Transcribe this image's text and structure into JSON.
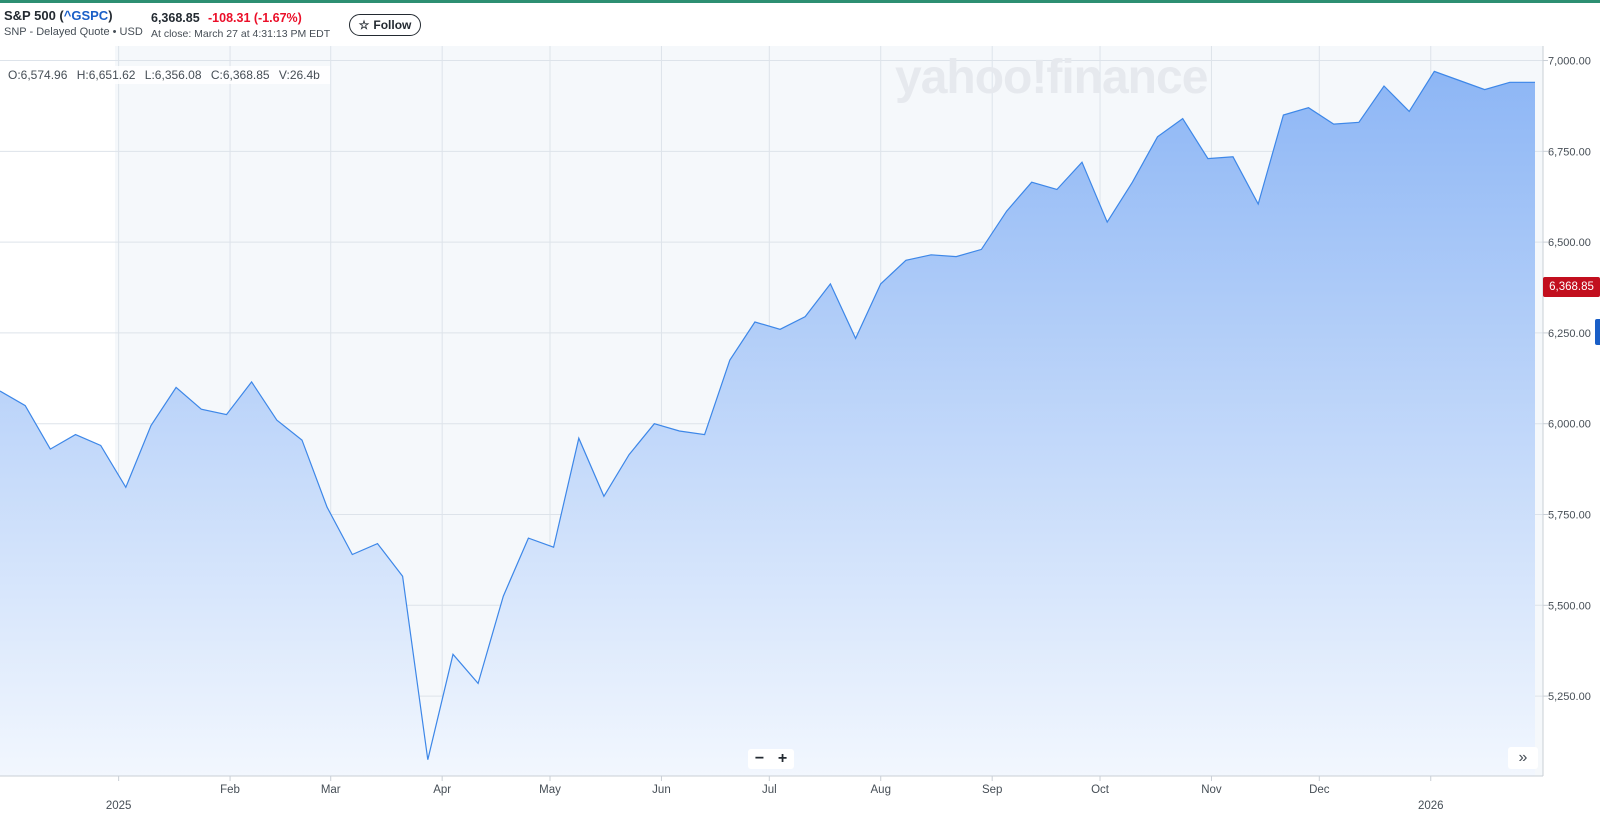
{
  "header": {
    "symbol_name": "S&P 500 (",
    "ticker": "^GSPC",
    "symbol_close": ")",
    "subtitle": "SNP - Delayed Quote • USD",
    "price": "6,368.85",
    "change": "-108.31",
    "change_pct": "(-1.67%)",
    "close_time": "At close: March 27 at 4:31:13 PM EDT",
    "follow_label": "Follow",
    "follow_icon": "star-outline-icon"
  },
  "ohlc": {
    "open": "O:6,574.96",
    "high": "H:6,651.62",
    "low": "L:6,356.08",
    "close": "C:6,368.85",
    "volume": "V:26.4b"
  },
  "watermark": "yahoo!finance",
  "controls": {
    "zoom_out": "−",
    "zoom_in": "+",
    "scroll_end": "»"
  },
  "last_price_tag": "6,368.85",
  "colors": {
    "line": "#3d87e8",
    "fill_top": "#8db6f5",
    "fill_bottom": "#f2f7fe",
    "down": "#eb0f29",
    "accent": "#1a5fc7",
    "topbar": "#2d8f72"
  },
  "chart_data": {
    "type": "area",
    "title": "",
    "xlabel": "",
    "ylabel": "",
    "ylim": [
      5030,
      7040
    ],
    "y_ticks": [
      "7,000.00",
      "6,750.00",
      "6,500.00",
      "6,250.00",
      "6,000.00",
      "5,750.00",
      "5,500.00",
      "5,250.00"
    ],
    "y_tick_values": [
      7000,
      6750,
      6500,
      6250,
      6000,
      5750,
      5500,
      5250
    ],
    "x_ticks": [
      {
        "label": "",
        "year": "2025",
        "x": "2025-01-01"
      },
      {
        "label": "Feb",
        "year": "",
        "x": "2025-02-01"
      },
      {
        "label": "Mar",
        "year": "",
        "x": "2025-03-01"
      },
      {
        "label": "Apr",
        "year": "",
        "x": "2025-04-01"
      },
      {
        "label": "May",
        "year": "",
        "x": "2025-05-01"
      },
      {
        "label": "Jun",
        "year": "",
        "x": "2025-06-01"
      },
      {
        "label": "Jul",
        "year": "",
        "x": "2025-07-01"
      },
      {
        "label": "Aug",
        "year": "",
        "x": "2025-08-01"
      },
      {
        "label": "Sep",
        "year": "",
        "x": "2025-09-01"
      },
      {
        "label": "Oct",
        "year": "",
        "x": "2025-10-01"
      },
      {
        "label": "Nov",
        "year": "",
        "x": "2025-11-01"
      },
      {
        "label": "Dec",
        "year": "",
        "x": "2025-12-01"
      },
      {
        "label": "",
        "year": "2026",
        "x": "2026-01-01"
      }
    ],
    "series": [
      {
        "x": [
          "2024-11-29",
          "2024-12-06",
          "2024-12-13",
          "2024-12-20",
          "2024-12-27",
          "2025-01-03",
          "2025-01-10",
          "2025-01-17",
          "2025-01-24",
          "2025-01-31",
          "2025-02-07",
          "2025-02-14",
          "2025-02-21",
          "2025-02-28",
          "2025-03-07",
          "2025-03-14",
          "2025-03-21",
          "2025-03-28",
          "2025-04-04",
          "2025-04-11",
          "2025-04-18",
          "2025-04-25",
          "2025-05-02",
          "2025-05-09",
          "2025-05-16",
          "2025-05-23",
          "2025-05-30",
          "2025-06-06",
          "2025-06-13",
          "2025-06-20",
          "2025-06-27",
          "2025-07-04",
          "2025-07-11",
          "2025-07-18",
          "2025-07-25",
          "2025-08-01",
          "2025-08-08",
          "2025-08-15",
          "2025-08-22",
          "2025-08-29",
          "2025-09-05",
          "2025-09-12",
          "2025-09-19",
          "2025-09-26",
          "2025-10-03",
          "2025-10-10",
          "2025-10-17",
          "2025-10-24",
          "2025-10-31",
          "2025-11-07",
          "2025-11-14",
          "2025-11-21",
          "2025-11-28",
          "2025-12-05",
          "2025-12-12",
          "2025-12-19",
          "2025-12-26",
          "2026-01-02",
          "2026-01-09",
          "2026-01-16",
          "2026-01-23",
          "2026-01-30"
        ],
        "values": [
          6090,
          6050,
          5930,
          5970,
          5940,
          5825,
          5995,
          6100,
          6040,
          6025,
          6115,
          6010,
          5955,
          5770,
          5640,
          5670,
          5580,
          5075,
          5365,
          5285,
          5525,
          5685,
          5660,
          5960,
          5800,
          5915,
          6000,
          5980,
          5970,
          6175,
          6280,
          6260,
          6295,
          6385,
          6235,
          6385,
          6450,
          6465,
          6460,
          6480,
          6585,
          6665,
          6645,
          6720,
          6555,
          6665,
          6790,
          6840,
          6730,
          6735,
          6605,
          6850,
          6870,
          6825,
          6830,
          6930,
          6860,
          6970,
          6945,
          6920,
          6940,
          6940
        ]
      }
    ],
    "grid": true,
    "legend": "none"
  }
}
